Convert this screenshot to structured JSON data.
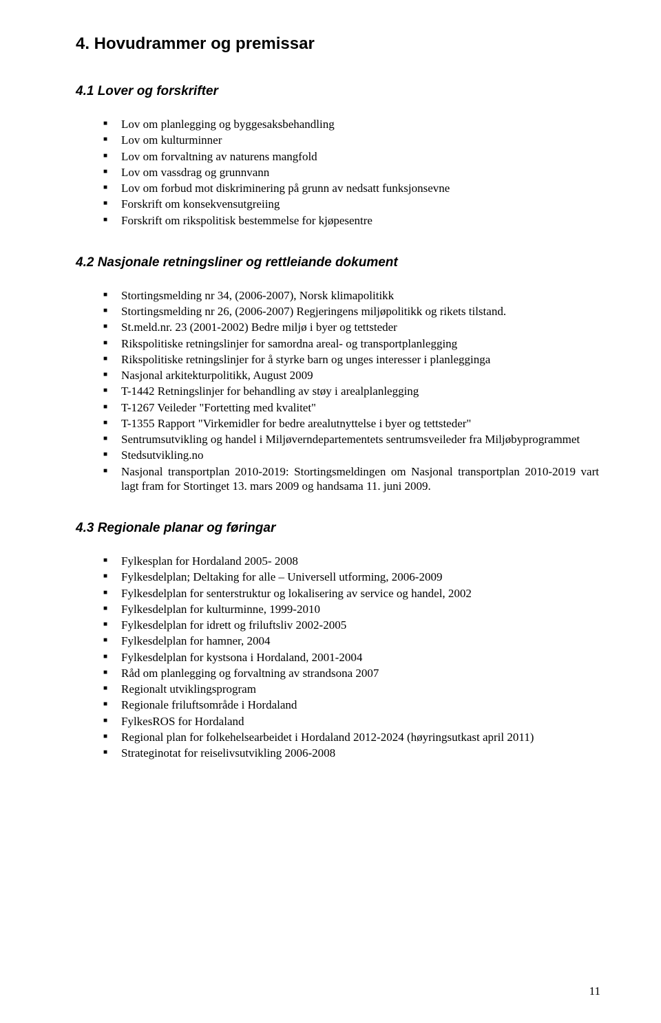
{
  "heading": "4. Hovudrammer og premissar",
  "sections": [
    {
      "title": "4.1   Lover og forskrifter",
      "items": [
        "Lov om planlegging og byggesaksbehandling",
        "Lov om kulturminner",
        "Lov om forvaltning av naturens mangfold",
        "Lov om vassdrag og grunnvann",
        "Lov om forbud mot diskriminering på grunn av nedsatt funksjonsevne",
        "Forskrift om konsekvensutgreiing",
        "Forskrift om rikspolitisk bestemmelse for kjøpesentre"
      ]
    },
    {
      "title": "4.2   Nasjonale retningsliner og rettleiande dokument",
      "items": [
        "Stortingsmelding nr 34, (2006-2007), Norsk klimapolitikk",
        "Stortingsmelding nr 26, (2006-2007) Regjeringens miljøpolitikk og rikets tilstand.",
        "St.meld.nr. 23 (2001-2002) Bedre miljø i byer og tettsteder",
        "Rikspolitiske retningslinjer for samordna areal- og transportplanlegging",
        "Rikspolitiske retningslinjer for å styrke barn og unges interesser i planlegginga",
        "Nasjonal arkitekturpolitikk, August 2009",
        "T-1442 Retningslinjer for behandling av støy i arealplanlegging",
        "T-1267 Veileder \"Fortetting med kvalitet\"",
        "T-1355 Rapport \"Virkemidler for bedre arealutnyttelse i byer og tettsteder\"",
        "Sentrumsutvikling og handel i Miljøverndepartementets sentrumsveileder fra Miljøbyprogrammet",
        "Stedsutvikling.no",
        "Nasjonal transportplan 2010-2019: Stortingsmeldingen om Nasjonal transportplan 2010-2019 vart lagt fram for Stortinget 13. mars 2009 og handsama 11. juni 2009."
      ]
    },
    {
      "title": "4.3   Regionale planar og føringar",
      "items": [
        "Fylkesplan for Hordaland 2005- 2008",
        "Fylkesdelplan; Deltaking for alle – Universell utforming, 2006-2009",
        "Fylkesdelplan for senterstruktur og lokalisering av service og handel, 2002",
        "Fylkesdelplan for kulturminne, 1999-2010",
        "Fylkesdelplan for idrett og friluftsliv 2002-2005",
        "Fylkesdelplan for hamner, 2004",
        "Fylkesdelplan for kystsona i Hordaland, 2001-2004",
        "Råd om planlegging og forvaltning av strandsona 2007",
        "Regionalt utviklingsprogram",
        "Regionale friluftsområde i Hordaland",
        "FylkesROS for Hordaland",
        "Regional plan for folkehelsearbeidet i Hordaland 2012-2024 (høyringsutkast april 2011)",
        "Strateginotat for reiselivsutvikling 2006-2008"
      ]
    }
  ],
  "justify_indexes": {
    "1": [
      9,
      11
    ],
    "2": [
      11
    ]
  },
  "page_number": "11"
}
